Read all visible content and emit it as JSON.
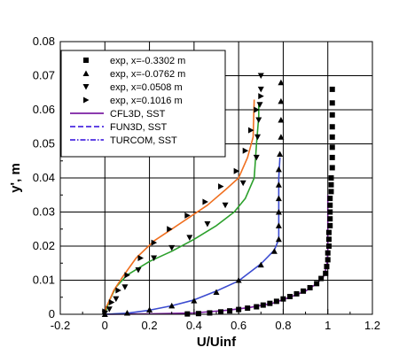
{
  "chart_data": {
    "type": "scatter",
    "xlabel": "U/Uinf",
    "ylabel": "y', m",
    "xlim": [
      -0.2,
      1.2
    ],
    "ylim": [
      0,
      0.08
    ],
    "xticks": [
      "-0.2",
      "0",
      "0.2",
      "0.4",
      "0.6",
      "0.8",
      "1",
      "1.2"
    ],
    "yticks": [
      "0",
      "0.01",
      "0.02",
      "0.03",
      "0.04",
      "0.05",
      "0.06",
      "0.07",
      "0.08"
    ],
    "grid": true,
    "legend_position": "top-left",
    "experimental_series": [
      {
        "name": "exp, x=-0.3302 m",
        "marker": "square",
        "color": "#000000",
        "points": [
          [
            1.02,
            0.066
          ],
          [
            1.02,
            0.062
          ],
          [
            1.02,
            0.0585
          ],
          [
            1.02,
            0.055
          ],
          [
            1.02,
            0.052
          ],
          [
            1.02,
            0.049
          ],
          [
            1.02,
            0.046
          ],
          [
            1.02,
            0.043
          ],
          [
            1.015,
            0.04
          ],
          [
            1.015,
            0.038
          ],
          [
            1.015,
            0.036
          ],
          [
            1.01,
            0.034
          ],
          [
            1.01,
            0.032
          ],
          [
            1.01,
            0.03
          ],
          [
            1.01,
            0.028
          ],
          [
            1.01,
            0.026
          ],
          [
            1.005,
            0.024
          ],
          [
            1.005,
            0.022
          ],
          [
            1.005,
            0.02
          ],
          [
            1.0,
            0.018
          ],
          [
            1.0,
            0.016
          ],
          [
            0.995,
            0.014
          ],
          [
            0.99,
            0.012
          ],
          [
            0.97,
            0.0105
          ],
          [
            0.95,
            0.009
          ],
          [
            0.92,
            0.0078
          ],
          [
            0.89,
            0.0068
          ],
          [
            0.86,
            0.006
          ],
          [
            0.83,
            0.0052
          ],
          [
            0.8,
            0.0045
          ],
          [
            0.77,
            0.0038
          ],
          [
            0.74,
            0.0032
          ],
          [
            0.71,
            0.0027
          ],
          [
            0.68,
            0.0022
          ],
          [
            0.64,
            0.0018
          ],
          [
            0.6,
            0.0014
          ],
          [
            0.56,
            0.001
          ],
          [
            0.52,
            0.0007
          ],
          [
            0.47,
            0.0004
          ],
          [
            0.42,
            0.0002
          ],
          [
            0.37,
            0.0001
          ]
        ]
      },
      {
        "name": "exp, x=-0.0762 m",
        "marker": "triangle-up",
        "color": "#000000",
        "points": [
          [
            0.79,
            0.068
          ],
          [
            0.79,
            0.0625
          ],
          [
            0.79,
            0.057
          ],
          [
            0.79,
            0.052
          ],
          [
            0.785,
            0.047
          ],
          [
            0.78,
            0.0425
          ],
          [
            0.78,
            0.038
          ],
          [
            0.78,
            0.034
          ],
          [
            0.78,
            0.03
          ],
          [
            0.78,
            0.026
          ],
          [
            0.78,
            0.022
          ],
          [
            0.76,
            0.0185
          ],
          [
            0.7,
            0.0145
          ],
          [
            0.6,
            0.01
          ],
          [
            0.5,
            0.0065
          ],
          [
            0.4,
            0.004
          ],
          [
            0.3,
            0.0025
          ],
          [
            0.2,
            0.0013
          ],
          [
            0.1,
            0.0004
          ],
          [
            0.0,
            0.0
          ]
        ]
      },
      {
        "name": "exp, x=0.0508 m",
        "marker": "triangle-down",
        "color": "#000000",
        "points": [
          [
            0.7,
            0.07
          ],
          [
            0.7,
            0.066
          ],
          [
            0.695,
            0.0615
          ],
          [
            0.69,
            0.057
          ],
          [
            0.685,
            0.052
          ],
          [
            0.68,
            0.046
          ],
          [
            0.62,
            0.0385
          ],
          [
            0.54,
            0.032
          ],
          [
            0.46,
            0.0265
          ],
          [
            0.38,
            0.0225
          ],
          [
            0.3,
            0.0195
          ],
          [
            0.22,
            0.0165
          ],
          [
            0.15,
            0.013
          ],
          [
            0.09,
            0.008
          ],
          [
            0.05,
            0.0045
          ],
          [
            0.02,
            0.0015
          ],
          [
            0.0,
            0.0003
          ]
        ]
      },
      {
        "name": "exp, x=0.1016 m",
        "marker": "triangle-right",
        "color": "#000000",
        "points": [
          [
            0.7,
            0.064
          ],
          [
            0.68,
            0.06
          ],
          [
            0.655,
            0.054
          ],
          [
            0.63,
            0.048
          ],
          [
            0.59,
            0.042
          ],
          [
            0.52,
            0.0375
          ],
          [
            0.45,
            0.033
          ],
          [
            0.37,
            0.029
          ],
          [
            0.29,
            0.025
          ],
          [
            0.22,
            0.021
          ],
          [
            0.16,
            0.0165
          ],
          [
            0.1,
            0.0115
          ],
          [
            0.06,
            0.007
          ],
          [
            0.03,
            0.0035
          ],
          [
            0.0,
            0.0008
          ]
        ]
      }
    ],
    "cfd_lines": [
      {
        "name": "CFL3D, SST",
        "dash": "solid",
        "color": "#7b1fa2"
      },
      {
        "name": "FUN3D, SST",
        "dash": "dash",
        "color": "#4b2be0"
      },
      {
        "name": "TURCOM, SST",
        "dash": "dashdot",
        "color": "#4b2be0"
      }
    ],
    "cfd_curves": [
      {
        "color": "#7b1fa2",
        "points": [
          [
            0.0,
            0.0
          ],
          [
            0.2,
            0.0001
          ],
          [
            0.4,
            0.0004
          ],
          [
            0.55,
            0.0012
          ],
          [
            0.65,
            0.002
          ],
          [
            0.75,
            0.0032
          ],
          [
            0.83,
            0.005
          ],
          [
            0.9,
            0.0068
          ],
          [
            0.95,
            0.009
          ],
          [
            0.98,
            0.011
          ],
          [
            0.995,
            0.014
          ],
          [
            1.0,
            0.018
          ],
          [
            1.0,
            0.025
          ],
          [
            1.0,
            0.03
          ],
          [
            1.0,
            0.035
          ]
        ]
      },
      {
        "color": "#3b4bd0",
        "points": [
          [
            0.0,
            0.0
          ],
          [
            0.1,
            0.0003
          ],
          [
            0.2,
            0.0012
          ],
          [
            0.3,
            0.0025
          ],
          [
            0.4,
            0.0042
          ],
          [
            0.5,
            0.0068
          ],
          [
            0.6,
            0.0098
          ],
          [
            0.7,
            0.0148
          ],
          [
            0.76,
            0.0188
          ],
          [
            0.78,
            0.022
          ],
          [
            0.78,
            0.032
          ],
          [
            0.78,
            0.04
          ],
          [
            0.785,
            0.046
          ]
        ]
      },
      {
        "color": "#2ca02c",
        "points": [
          [
            0.0,
            0.0
          ],
          [
            0.01,
            0.002
          ],
          [
            0.02,
            0.004
          ],
          [
            0.05,
            0.008
          ],
          [
            0.1,
            0.0115
          ],
          [
            0.2,
            0.0155
          ],
          [
            0.3,
            0.0185
          ],
          [
            0.4,
            0.022
          ],
          [
            0.5,
            0.026
          ],
          [
            0.58,
            0.03
          ],
          [
            0.63,
            0.034
          ],
          [
            0.67,
            0.04
          ],
          [
            0.68,
            0.05
          ],
          [
            0.69,
            0.058
          ],
          [
            0.69,
            0.062
          ]
        ]
      },
      {
        "color": "#f07020",
        "points": [
          [
            0.0,
            0.0
          ],
          [
            0.005,
            0.002
          ],
          [
            0.02,
            0.004
          ],
          [
            0.04,
            0.007
          ],
          [
            0.08,
            0.011
          ],
          [
            0.14,
            0.0165
          ],
          [
            0.22,
            0.0215
          ],
          [
            0.3,
            0.025
          ],
          [
            0.38,
            0.0285
          ],
          [
            0.46,
            0.032
          ],
          [
            0.54,
            0.0365
          ],
          [
            0.6,
            0.04
          ],
          [
            0.64,
            0.046
          ],
          [
            0.665,
            0.052
          ],
          [
            0.67,
            0.063
          ]
        ]
      }
    ]
  }
}
